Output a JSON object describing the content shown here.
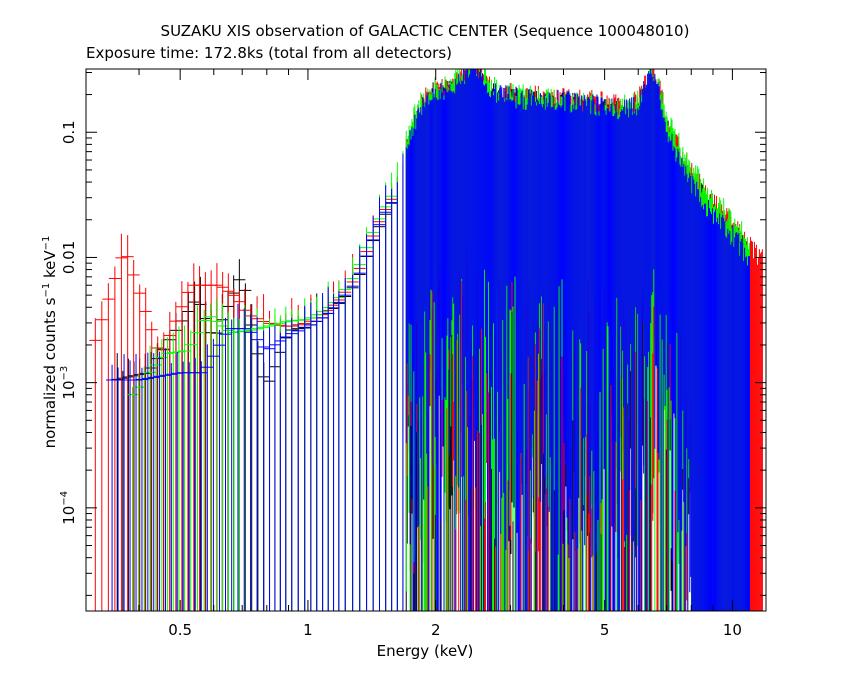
{
  "chart_data": {
    "type": "scatter",
    "title": "SUZAKU XIS observation of GALACTIC CENTER (Sequence 100048010)",
    "subtitle": "Exposure time: 172.8ks (total from all detectors)",
    "xlabel": "Energy (keV)",
    "ylabel_text": "normalized counts s",
    "ylabel_exp1": "−1",
    "ylabel_mid": " keV",
    "ylabel_exp2": "−1",
    "x_scale": "log",
    "y_scale": "log",
    "xlim": [
      0.3,
      12.0
    ],
    "ylim": [
      1.5e-05,
      0.32
    ],
    "x_ticks": [
      {
        "value": 0.5,
        "label": "0.5"
      },
      {
        "value": 1,
        "label": "1"
      },
      {
        "value": 2,
        "label": "2"
      },
      {
        "value": 5,
        "label": "5"
      },
      {
        "value": 10,
        "label": "10"
      }
    ],
    "y_ticks": [
      {
        "value": 0.0001,
        "base": "10",
        "exp": "−4"
      },
      {
        "value": 0.001,
        "base": "10",
        "exp": "−3"
      },
      {
        "value": 0.01,
        "label": "0.01"
      },
      {
        "value": 0.1,
        "label": "0.1"
      }
    ],
    "grid": false,
    "legend": "none",
    "series": [
      {
        "color": "#000000",
        "points": [
          [
            0.35,
            0.00105
          ],
          [
            0.42,
            0.0012
          ],
          [
            0.55,
            0.0048
          ],
          [
            0.6,
            0.0022
          ],
          [
            0.7,
            0.0075
          ],
          [
            0.75,
            0.0021
          ],
          [
            0.8,
            0.0009
          ],
          [
            0.9,
            0.0026
          ],
          [
            1.0,
            0.0028
          ],
          [
            1.1,
            0.0034
          ],
          [
            1.2,
            0.0045
          ],
          [
            1.3,
            0.0062
          ],
          [
            1.4,
            0.012
          ],
          [
            1.5,
            0.02
          ],
          [
            1.6,
            0.03
          ],
          [
            1.7,
            0.05
          ],
          [
            1.8,
            0.09
          ],
          [
            1.9,
            0.13
          ],
          [
            2.0,
            0.16
          ],
          [
            2.2,
            0.16
          ],
          [
            2.45,
            0.26
          ],
          [
            2.7,
            0.15
          ],
          [
            3.0,
            0.14
          ],
          [
            3.5,
            0.13
          ],
          [
            4.0,
            0.13
          ],
          [
            4.5,
            0.12
          ],
          [
            5.0,
            0.12
          ],
          [
            5.5,
            0.11
          ],
          [
            6.0,
            0.12
          ],
          [
            6.4,
            0.21
          ],
          [
            6.7,
            0.17
          ],
          [
            7.0,
            0.08
          ],
          [
            7.5,
            0.05
          ],
          [
            8.0,
            0.03
          ],
          [
            9.0,
            0.018
          ],
          [
            10.0,
            0.012
          ],
          [
            11.0,
            0.008
          ]
        ]
      },
      {
        "color": "#ff0000",
        "points": [
          [
            0.31,
            0.0018
          ],
          [
            0.37,
            0.012
          ],
          [
            0.45,
            0.0016
          ],
          [
            0.53,
            0.006
          ],
          [
            0.62,
            0.006
          ],
          [
            0.68,
            0.0048
          ],
          [
            0.72,
            0.0035
          ],
          [
            0.8,
            0.003
          ],
          [
            0.9,
            0.0028
          ],
          [
            1.0,
            0.003
          ],
          [
            1.1,
            0.0036
          ],
          [
            1.2,
            0.0048
          ],
          [
            1.3,
            0.007
          ],
          [
            1.4,
            0.013
          ],
          [
            1.5,
            0.022
          ],
          [
            1.6,
            0.032
          ],
          [
            1.7,
            0.055
          ],
          [
            1.8,
            0.1
          ],
          [
            1.9,
            0.14
          ],
          [
            2.0,
            0.17
          ],
          [
            2.2,
            0.17
          ],
          [
            2.45,
            0.27
          ],
          [
            2.7,
            0.16
          ],
          [
            3.0,
            0.15
          ],
          [
            3.5,
            0.14
          ],
          [
            4.0,
            0.14
          ],
          [
            4.5,
            0.13
          ],
          [
            5.0,
            0.13
          ],
          [
            5.5,
            0.12
          ],
          [
            6.0,
            0.13
          ],
          [
            6.4,
            0.22
          ],
          [
            6.7,
            0.18
          ],
          [
            7.0,
            0.09
          ],
          [
            7.5,
            0.055
          ],
          [
            8.0,
            0.035
          ],
          [
            9.0,
            0.02
          ],
          [
            10.0,
            0.014
          ],
          [
            11.0,
            0.009
          ],
          [
            11.8,
            0.007
          ]
        ]
      },
      {
        "color": "#00ff00",
        "points": [
          [
            0.38,
            0.00075
          ],
          [
            0.46,
            0.0017
          ],
          [
            0.52,
            0.0018
          ],
          [
            0.58,
            0.0035
          ],
          [
            0.66,
            0.0025
          ],
          [
            0.72,
            0.0026
          ],
          [
            0.8,
            0.0028
          ],
          [
            0.9,
            0.0031
          ],
          [
            1.0,
            0.0032
          ],
          [
            1.1,
            0.0038
          ],
          [
            1.2,
            0.005
          ],
          [
            1.3,
            0.0075
          ],
          [
            1.4,
            0.014
          ],
          [
            1.5,
            0.023
          ],
          [
            1.6,
            0.034
          ],
          [
            1.7,
            0.06
          ],
          [
            1.8,
            0.11
          ],
          [
            1.9,
            0.15
          ],
          [
            2.0,
            0.17
          ],
          [
            2.2,
            0.18
          ],
          [
            2.45,
            0.28
          ],
          [
            2.7,
            0.17
          ],
          [
            3.0,
            0.15
          ],
          [
            3.5,
            0.14
          ],
          [
            4.0,
            0.14
          ],
          [
            4.5,
            0.13
          ],
          [
            5.0,
            0.13
          ],
          [
            5.5,
            0.12
          ],
          [
            6.0,
            0.13
          ],
          [
            6.4,
            0.22
          ],
          [
            6.7,
            0.18
          ],
          [
            7.0,
            0.095
          ],
          [
            7.5,
            0.06
          ],
          [
            8.0,
            0.038
          ],
          [
            9.0,
            0.022
          ],
          [
            10.0,
            0.015
          ],
          [
            11.0,
            0.01
          ]
        ]
      },
      {
        "color": "#0000ff",
        "points": [
          [
            0.34,
            0.00105
          ],
          [
            0.4,
            0.00105
          ],
          [
            0.5,
            0.0012
          ],
          [
            0.57,
            0.0012
          ],
          [
            0.65,
            0.0027
          ],
          [
            0.72,
            0.0027
          ],
          [
            0.8,
            0.0018
          ],
          [
            0.9,
            0.0024
          ],
          [
            1.0,
            0.0028
          ],
          [
            1.1,
            0.0034
          ],
          [
            1.2,
            0.0046
          ],
          [
            1.3,
            0.0064
          ],
          [
            1.4,
            0.012
          ],
          [
            1.5,
            0.021
          ],
          [
            1.6,
            0.03
          ],
          [
            1.7,
            0.052
          ],
          [
            1.8,
            0.09
          ],
          [
            1.9,
            0.13
          ],
          [
            2.0,
            0.15
          ],
          [
            2.2,
            0.16
          ],
          [
            2.45,
            0.27
          ],
          [
            2.7,
            0.15
          ],
          [
            3.0,
            0.14
          ],
          [
            3.5,
            0.13
          ],
          [
            4.0,
            0.13
          ],
          [
            4.5,
            0.12
          ],
          [
            5.0,
            0.12
          ],
          [
            5.5,
            0.11
          ],
          [
            6.0,
            0.12
          ],
          [
            6.4,
            0.24
          ],
          [
            6.7,
            0.16
          ],
          [
            7.0,
            0.075
          ],
          [
            7.5,
            0.045
          ],
          [
            8.0,
            0.028
          ],
          [
            9.0,
            0.016
          ],
          [
            10.0,
            0.011
          ],
          [
            11.0,
            0.007
          ]
        ]
      }
    ]
  }
}
